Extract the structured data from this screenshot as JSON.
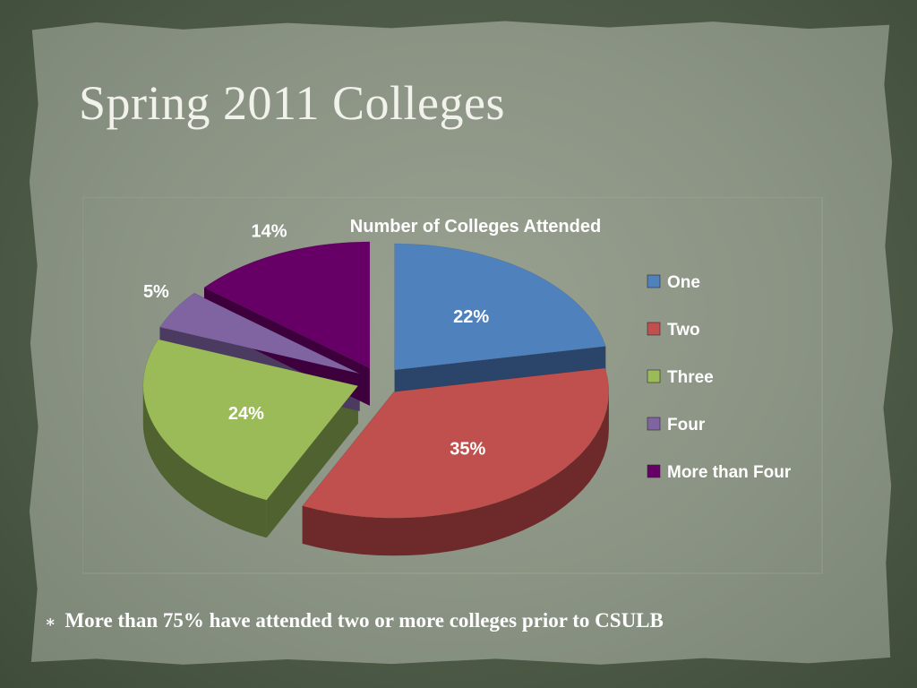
{
  "slide": {
    "title": "Spring 2011 Colleges",
    "footnote_bullet": "∗",
    "footnote": "More than 75% have attended two or more colleges prior to CSULB"
  },
  "chart_data": {
    "type": "pie",
    "title": "Number of Colleges Attended",
    "categories": [
      "One",
      "Two",
      "Three",
      "Four",
      "More than Four"
    ],
    "values": [
      22,
      35,
      24,
      5,
      14
    ],
    "labels": [
      "22%",
      "35%",
      "24%",
      "5%",
      "14%"
    ],
    "colors": [
      "#4f81bd",
      "#c0504d",
      "#9bbb59",
      "#8064a2",
      "#660066"
    ],
    "side_colors": [
      "#2a446a",
      "#6e2a2a",
      "#4f6230",
      "#4b3b60",
      "#3d003d"
    ],
    "exploded": true,
    "three_d": true,
    "legend_position": "right"
  }
}
